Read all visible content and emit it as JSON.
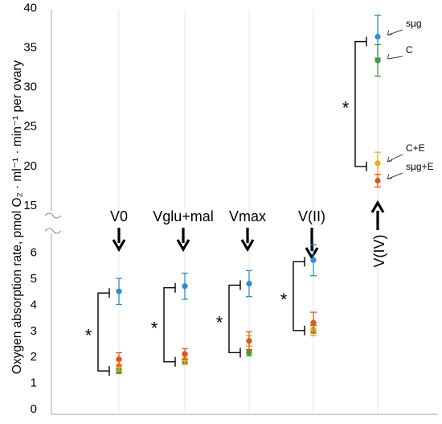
{
  "chart_data": {
    "type": "scatter",
    "ylabel": "Oxygen absorption rate, pmol O₂ · ml⁻¹ · min⁻¹ per ovary",
    "ylim_upper": [
      15,
      40
    ],
    "ylim_lower": [
      0,
      6.5
    ],
    "yticks_upper": [
      "15",
      "20",
      "25",
      "30",
      "35",
      "40"
    ],
    "yticks_lower": [
      "0",
      "1",
      "2",
      "3",
      "4",
      "5",
      "6"
    ],
    "categories": [
      "V0",
      "Vglu+mal",
      "Vmax",
      "V(II)",
      "V(IV)"
    ],
    "colors": {
      "sµg": "#2b8fd0",
      "C": "#3f9d3a",
      "C+E": "#f0a81f",
      "sµg+E": "#e5541a"
    },
    "series": [
      {
        "name": "sµg",
        "values": [
          4.5,
          4.7,
          4.8,
          5.7,
          36.3
        ],
        "err": [
          0.5,
          0.5,
          0.5,
          0.6,
          2.7
        ]
      },
      {
        "name": "C",
        "values": [
          1.45,
          1.8,
          2.15,
          3.0,
          33.3
        ],
        "err": [
          0.1,
          0.1,
          0.12,
          0.2,
          2.0
        ]
      },
      {
        "name": "C+E",
        "values": [
          1.65,
          1.9,
          2.6,
          3.05,
          20.3
        ],
        "err": [
          0.2,
          0.2,
          0.2,
          0.25,
          1.4
        ]
      },
      {
        "name": "sµg+E",
        "values": [
          1.9,
          2.1,
          2.6,
          3.3,
          18.1
        ],
        "err": [
          0.25,
          0.2,
          0.35,
          0.4,
          0.8
        ]
      }
    ],
    "significance": [
      "*",
      "*",
      "*",
      "*",
      "*"
    ],
    "series_labels": [
      "sµg",
      "C",
      "C+E",
      "sµg+E"
    ],
    "grid": true
  }
}
